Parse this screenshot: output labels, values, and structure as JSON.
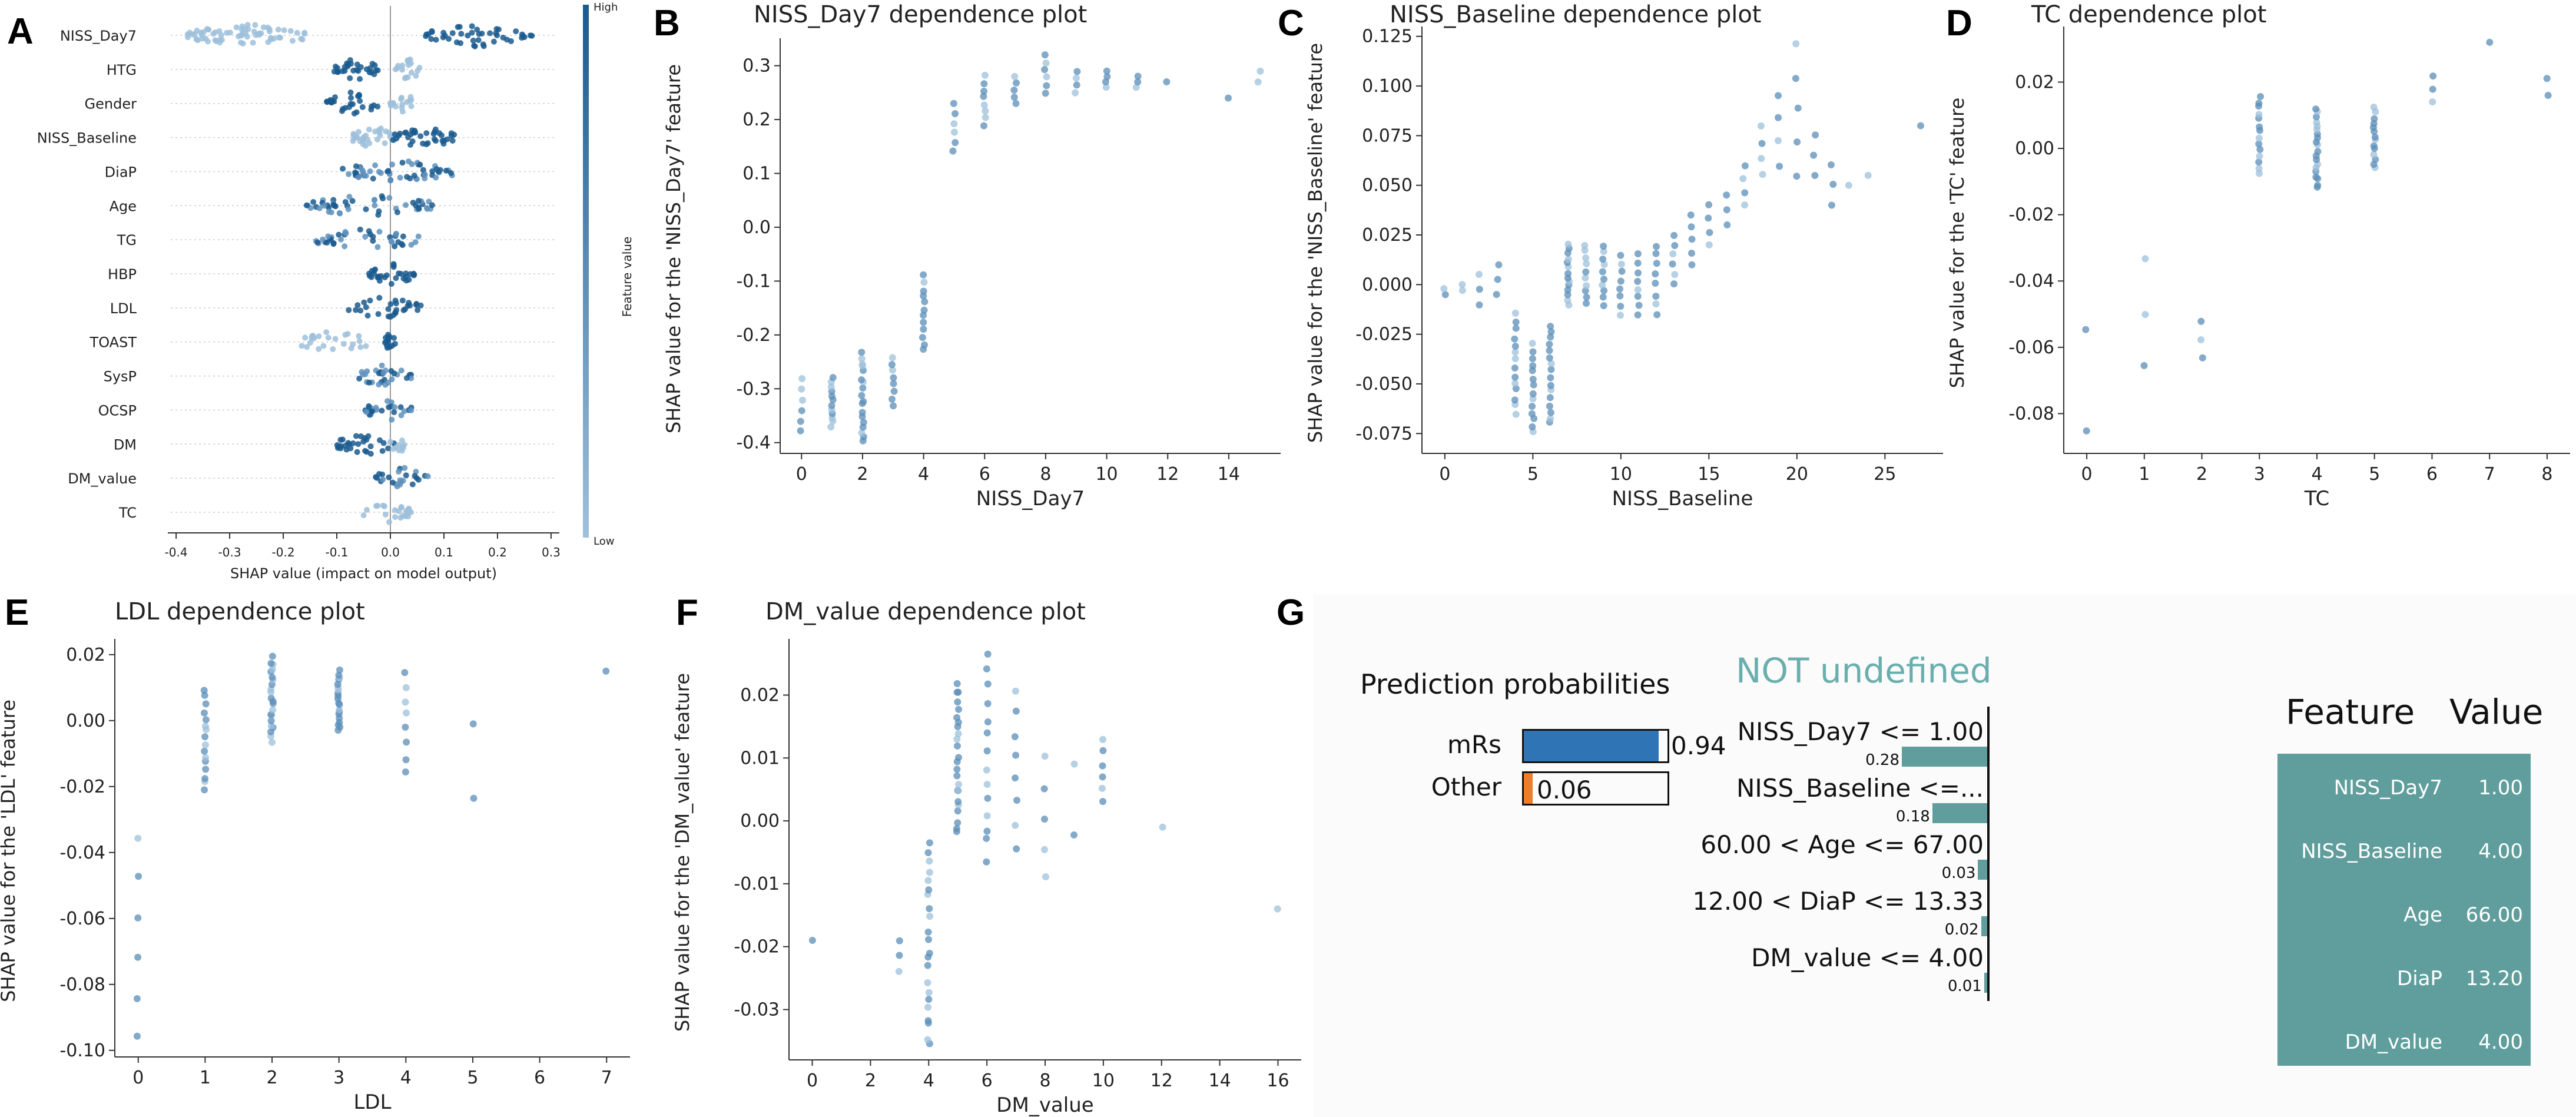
{
  "panel_labels": [
    "A",
    "B",
    "C",
    "D",
    "E",
    "F",
    "G"
  ],
  "colors": {
    "high": "#1a5a8e",
    "low": "#9ec0db",
    "mid": "#5f92bd",
    "point": "#5b8db8",
    "mrs": "#2f74b5",
    "other": "#ee7d2a",
    "teal": "#5f9e9c",
    "lime_title": "#6aaeae"
  },
  "chart_data": [
    {
      "id": "A",
      "type": "scatter",
      "subtype": "beeswarm",
      "title": "",
      "features": [
        "NISS_Day7",
        "HTG",
        "Gender",
        "NISS_Baseline",
        "DiaP",
        "Age",
        "TG",
        "HBP",
        "LDL",
        "TOAST",
        "SysP",
        "OCSP",
        "DM",
        "DM_value",
        "TC"
      ],
      "xlabel": "SHAP value (impact on model output)",
      "xticks": [
        -0.4,
        -0.3,
        -0.2,
        -0.1,
        0.0,
        0.1,
        0.2,
        0.3
      ],
      "xlim": [
        -0.41,
        0.31
      ],
      "colorbar": {
        "label": "Feature value",
        "high": "High",
        "low": "Low"
      },
      "spreads": [
        {
          "name": "NISS_Day7",
          "segments": [
            [
              -0.38,
              -0.15,
              "low",
              70
            ],
            [
              0.06,
              0.27,
              "high",
              45
            ]
          ]
        },
        {
          "name": "HTG",
          "segments": [
            [
              -0.11,
              -0.02,
              "high",
              30
            ],
            [
              0.01,
              0.06,
              "low",
              18
            ]
          ]
        },
        {
          "name": "Gender",
          "segments": [
            [
              -0.12,
              -0.02,
              "high",
              30
            ],
            [
              0.0,
              0.05,
              "low",
              16
            ]
          ]
        },
        {
          "name": "NISS_Baseline",
          "segments": [
            [
              -0.07,
              0.01,
              "low",
              30
            ],
            [
              0.0,
              0.12,
              "high",
              35
            ]
          ]
        },
        {
          "name": "DiaP",
          "segments": [
            [
              -0.09,
              0.12,
              "mid",
              55
            ]
          ]
        },
        {
          "name": "Age",
          "segments": [
            [
              -0.16,
              0.08,
              "mid",
              50
            ]
          ]
        },
        {
          "name": "TG",
          "segments": [
            [
              -0.14,
              0.06,
              "mid",
              40
            ]
          ]
        },
        {
          "name": "HBP",
          "segments": [
            [
              -0.04,
              0.05,
              "high",
              30
            ]
          ]
        },
        {
          "name": "LDL",
          "segments": [
            [
              -0.08,
              0.06,
              "high",
              30
            ]
          ]
        },
        {
          "name": "TOAST",
          "segments": [
            [
              -0.17,
              -0.04,
              "low",
              26
            ],
            [
              -0.01,
              0.01,
              "high",
              14
            ]
          ]
        },
        {
          "name": "SysP",
          "segments": [
            [
              -0.06,
              0.04,
              "mid",
              30
            ]
          ]
        },
        {
          "name": "OCSP",
          "segments": [
            [
              -0.05,
              0.04,
              "mid",
              26
            ]
          ]
        },
        {
          "name": "DM",
          "segments": [
            [
              -0.1,
              0.01,
              "high",
              30
            ],
            [
              0.0,
              0.03,
              "low",
              10
            ]
          ]
        },
        {
          "name": "DM_value",
          "segments": [
            [
              -0.03,
              0.07,
              "mid",
              26
            ]
          ]
        },
        {
          "name": "TC",
          "segments": [
            [
              -0.05,
              0.04,
              "low",
              24
            ]
          ]
        }
      ]
    },
    {
      "id": "B",
      "type": "scatter",
      "title": "NISS_Day7 dependence plot",
      "xlabel": "NISS_Day7",
      "ylabel": "SHAP value for the 'NISS_Day7' feature",
      "xlim": [
        -0.7,
        15.7
      ],
      "ylim": [
        -0.42,
        0.34
      ],
      "xticks": [
        0,
        2,
        4,
        6,
        8,
        10,
        12,
        14
      ],
      "yticks": [
        -0.4,
        -0.3,
        -0.2,
        -0.1,
        0.0,
        0.1,
        0.2,
        0.3
      ],
      "yticklabels": [
        "-0.4",
        "-0.3",
        "-0.2",
        "-0.1",
        "0.0",
        "0.1",
        "0.2",
        "0.3"
      ],
      "columns": [
        [
          0,
          -0.38,
          -0.28,
          6
        ],
        [
          1,
          -0.37,
          -0.28,
          12
        ],
        [
          2,
          -0.4,
          -0.23,
          18
        ],
        [
          3,
          -0.33,
          -0.24,
          8
        ],
        [
          4,
          -0.23,
          -0.09,
          12
        ],
        [
          5,
          0.14,
          0.23,
          6
        ],
        [
          6,
          0.19,
          0.28,
          8
        ],
        [
          7,
          0.23,
          0.28,
          5
        ],
        [
          8,
          0.25,
          0.32,
          6
        ],
        [
          9,
          0.25,
          0.29,
          4
        ],
        [
          10,
          0.26,
          0.29,
          4
        ],
        [
          11,
          0.26,
          0.28,
          3
        ],
        [
          12,
          0.27,
          0.27,
          1
        ],
        [
          14,
          0.24,
          0.24,
          1
        ],
        [
          15,
          0.27,
          0.29,
          2
        ]
      ]
    },
    {
      "id": "C",
      "type": "scatter",
      "title": "NISS_Baseline dependence plot",
      "xlabel": "NISS_Baseline",
      "ylabel": "SHAP value for the 'NISS_Baseline' feature",
      "xlim": [
        -1.3,
        28.3
      ],
      "ylim": [
        -0.085,
        0.127
      ],
      "xticks": [
        0,
        5,
        10,
        15,
        20,
        25
      ],
      "yticks": [
        -0.075,
        -0.05,
        -0.025,
        0.0,
        0.025,
        0.05,
        0.075,
        0.1,
        0.125
      ],
      "yticklabels": [
        "-0.075",
        "-0.050",
        "-0.025",
        "0.000",
        "0.025",
        "0.050",
        "0.075",
        "0.100",
        "0.125"
      ],
      "columns": [
        [
          0,
          -0.005,
          -0.002,
          2
        ],
        [
          1,
          -0.003,
          0.0,
          2
        ],
        [
          2,
          -0.01,
          0.005,
          3
        ],
        [
          3,
          -0.005,
          0.01,
          3
        ],
        [
          4,
          -0.065,
          -0.015,
          14
        ],
        [
          5,
          -0.075,
          -0.03,
          14
        ],
        [
          6,
          -0.07,
          -0.02,
          16
        ],
        [
          7,
          -0.01,
          0.02,
          14
        ],
        [
          8,
          -0.01,
          0.02,
          10
        ],
        [
          9,
          -0.01,
          0.02,
          10
        ],
        [
          10,
          -0.015,
          0.015,
          8
        ],
        [
          11,
          -0.015,
          0.015,
          8
        ],
        [
          12,
          -0.015,
          0.02,
          8
        ],
        [
          13,
          0.0,
          0.025,
          6
        ],
        [
          14,
          0.01,
          0.035,
          5
        ],
        [
          15,
          0.02,
          0.04,
          4
        ],
        [
          16,
          0.03,
          0.045,
          3
        ],
        [
          17,
          0.04,
          0.06,
          4
        ],
        [
          18,
          0.055,
          0.08,
          4
        ],
        [
          19,
          0.06,
          0.095,
          4
        ],
        [
          20,
          0.055,
          0.12,
          5
        ],
        [
          21,
          0.055,
          0.075,
          3
        ],
        [
          22,
          0.04,
          0.06,
          3
        ],
        [
          23,
          0.05,
          0.05,
          1
        ],
        [
          24,
          0.055,
          0.055,
          1
        ],
        [
          27,
          0.08,
          0.08,
          1
        ]
      ]
    },
    {
      "id": "D",
      "type": "scatter",
      "title": "TC dependence plot",
      "xlabel": "TC",
      "ylabel": "SHAP value for the 'TC' feature",
      "xlim": [
        -0.4,
        8.4
      ],
      "ylim": [
        -0.092,
        0.035
      ],
      "xticks": [
        0,
        1,
        2,
        3,
        4,
        5,
        6,
        7,
        8
      ],
      "yticks": [
        -0.08,
        -0.06,
        -0.04,
        -0.02,
        0.0,
        0.02
      ],
      "yticklabels": [
        "-0.08",
        "-0.06",
        "-0.04",
        "-0.02",
        "0.00",
        "0.02"
      ],
      "columns": [
        [
          0,
          -0.085,
          -0.055,
          2
        ],
        [
          1,
          -0.065,
          -0.034,
          3
        ],
        [
          2,
          -0.063,
          -0.052,
          3
        ],
        [
          3,
          -0.008,
          0.016,
          14
        ],
        [
          4,
          -0.012,
          0.012,
          20
        ],
        [
          5,
          -0.006,
          0.012,
          14
        ],
        [
          6,
          0.014,
          0.022,
          3
        ],
        [
          7,
          0.032,
          0.032,
          1
        ],
        [
          8,
          0.016,
          0.021,
          2
        ]
      ]
    },
    {
      "id": "E",
      "type": "scatter",
      "title": "LDL dependence plot",
      "xlabel": "LDL",
      "ylabel": "SHAP value for the 'LDL' feature",
      "xlim": [
        -0.35,
        7.35
      ],
      "ylim": [
        -0.102,
        0.023
      ],
      "xticks": [
        0,
        1,
        2,
        3,
        4,
        5,
        6,
        7
      ],
      "yticks": [
        -0.1,
        -0.08,
        -0.06,
        -0.04,
        -0.02,
        0.0,
        0.02
      ],
      "yticklabels": [
        "-0.10",
        "-0.08",
        "-0.06",
        "-0.04",
        "-0.02",
        "0.00",
        "0.02"
      ],
      "columns": [
        [
          0,
          -0.096,
          -0.036,
          6
        ],
        [
          1,
          -0.021,
          0.009,
          16
        ],
        [
          2,
          -0.006,
          0.019,
          22
        ],
        [
          3,
          -0.003,
          0.015,
          20
        ],
        [
          4,
          -0.016,
          0.015,
          8
        ],
        [
          5,
          -0.024,
          -0.001,
          2
        ],
        [
          7,
          0.015,
          0.015,
          1
        ]
      ]
    },
    {
      "id": "F",
      "type": "scatter",
      "title": "DM_value dependence plot",
      "xlabel": "DM_value",
      "ylabel": "SHAP value for the 'DM_value' feature",
      "xlim": [
        -0.8,
        16.8
      ],
      "ylim": [
        -0.038,
        0.028
      ],
      "xticks": [
        0,
        2,
        4,
        6,
        8,
        10,
        12,
        14,
        16
      ],
      "yticks": [
        -0.03,
        -0.02,
        -0.01,
        0.0,
        0.01,
        0.02
      ],
      "yticklabels": [
        "-0.03",
        "-0.02",
        "-0.01",
        "0.00",
        "0.01",
        "0.02"
      ],
      "columns": [
        [
          0,
          -0.019,
          -0.019,
          1
        ],
        [
          3,
          -0.024,
          -0.019,
          3
        ],
        [
          4,
          -0.036,
          -0.003,
          22
        ],
        [
          5,
          -0.002,
          0.022,
          24
        ],
        [
          6,
          -0.006,
          0.026,
          14
        ],
        [
          7,
          -0.004,
          0.021,
          8
        ],
        [
          8,
          -0.009,
          0.01,
          5
        ],
        [
          9,
          -0.002,
          0.009,
          2
        ],
        [
          10,
          0.003,
          0.013,
          6
        ],
        [
          12,
          -0.001,
          -0.001,
          1
        ],
        [
          16,
          -0.014,
          -0.014,
          1
        ]
      ]
    }
  ],
  "lime": {
    "prob_title": "Prediction probabilities",
    "probs": [
      {
        "label": "mRs",
        "value": 0.94,
        "text": "0.94"
      },
      {
        "label": "Other",
        "value": 0.06,
        "text": "0.06"
      }
    ],
    "explain_title": "NOT undefined",
    "conditions": [
      {
        "label": "NISS_Day7 <= 1.00",
        "weight": 0.28,
        "text": "0.28"
      },
      {
        "label": "NISS_Baseline <=...",
        "weight": 0.18,
        "text": "0.18"
      },
      {
        "label": "60.00 < Age <= 67.00",
        "weight": 0.03,
        "text": "0.03"
      },
      {
        "label": "12.00 < DiaP <= 13.33",
        "weight": 0.02,
        "text": "0.02"
      },
      {
        "label": "DM_value <= 4.00",
        "weight": 0.01,
        "text": "0.01"
      }
    ],
    "table_headers": [
      "Feature",
      "Value"
    ],
    "table_rows": [
      [
        "NISS_Day7",
        "1.00"
      ],
      [
        "NISS_Baseline",
        "4.00"
      ],
      [
        "Age",
        "66.00"
      ],
      [
        "DiaP",
        "13.20"
      ],
      [
        "DM_value",
        "4.00"
      ]
    ]
  }
}
